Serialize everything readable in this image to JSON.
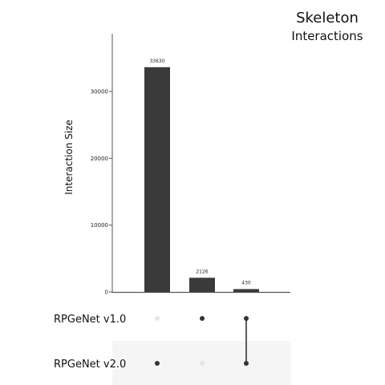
{
  "chart_data": {
    "type": "bar",
    "title": "Skeleton",
    "subtitle": "Interactions",
    "ylabel": "Interaction Size",
    "ylim": [
      0,
      35000
    ],
    "yticks": [
      0,
      10000,
      20000,
      30000
    ],
    "sets": [
      "RPGeNet v1.0",
      "RPGeNet v2.0"
    ],
    "intersections": [
      {
        "value": 33630,
        "label": "33630",
        "members": [
          false,
          true
        ]
      },
      {
        "value": 2126,
        "label": "2126",
        "members": [
          true,
          false
        ]
      },
      {
        "value": 430,
        "label": "430",
        "members": [
          true,
          true
        ]
      }
    ],
    "colors": {
      "bar": "#3a3a3a",
      "dot_active": "#333333",
      "dot_inactive": "#e6e6e6",
      "band": "#f5f5f5",
      "axis": "#555555"
    }
  }
}
